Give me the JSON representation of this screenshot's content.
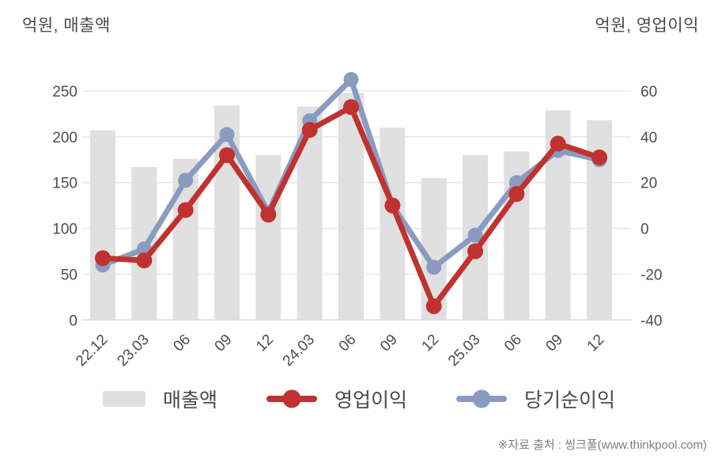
{
  "titles": {
    "left_unit": "억원, 매출액",
    "right_unit": "억원, 영업이익"
  },
  "legend": {
    "items": [
      {
        "label": "매출액",
        "type": "bar",
        "color": "#e0e0e0"
      },
      {
        "label": "영업이익",
        "type": "line",
        "color": "#c0322f"
      },
      {
        "label": "당기순이익",
        "type": "line",
        "color": "#8a9bc1"
      }
    ]
  },
  "source_note": "※자료 출처 : 씽크풀(www.thinkpool.com)",
  "colors": {
    "bar": "#e0e0e0",
    "operating_profit": "#c0322f",
    "net_income": "#8a9bc1",
    "grid": "#e8e8e8",
    "zero_line": "#dcdcdc",
    "axis_text": "#4d4d4d",
    "title_text": "#4a4a4a",
    "source_text": "#7f7f7f",
    "background": "#ffffff"
  },
  "chart_data": {
    "type": "bar",
    "subtype": "combo-bar-line-dual-axis",
    "title": "",
    "categories": [
      "22.12",
      "23.03",
      "06",
      "09",
      "12",
      "24.03",
      "06",
      "09",
      "12",
      "25.03",
      "06",
      "09",
      "12"
    ],
    "series": [
      {
        "name": "매출액",
        "type": "bar",
        "axis": "left",
        "color": "#e0e0e0",
        "values": [
          207,
          167,
          176,
          234,
          180,
          233,
          248,
          210,
          155,
          180,
          184,
          229,
          218
        ]
      },
      {
        "name": "영업이익",
        "type": "line",
        "axis": "right",
        "color": "#c0322f",
        "values": [
          -13,
          -14,
          8,
          32,
          6,
          43,
          53,
          10,
          -34,
          -10,
          15,
          37,
          31
        ]
      },
      {
        "name": "당기순이익",
        "type": "line",
        "axis": "right",
        "color": "#8a9bc1",
        "values": [
          -16,
          -9,
          21,
          41,
          7,
          47,
          65,
          10,
          -17,
          -3,
          20,
          34,
          30
        ]
      }
    ],
    "left_axis": {
      "label": "억원, 매출액",
      "ticks": [
        0,
        50,
        100,
        150,
        200,
        250
      ],
      "range": [
        0,
        250
      ]
    },
    "right_axis": {
      "label": "억원, 영업이익",
      "ticks": [
        -40,
        -20,
        0,
        20,
        40,
        60
      ],
      "range": [
        -40,
        60
      ]
    },
    "grid": true,
    "legend_position": "bottom",
    "x_label_rotation": -45
  }
}
